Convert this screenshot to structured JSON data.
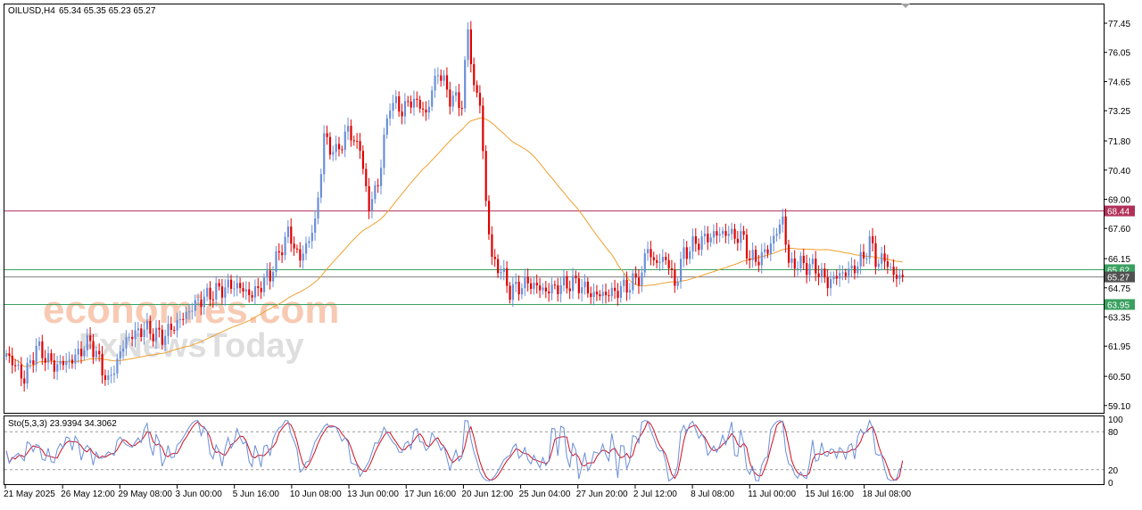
{
  "header": {
    "symbol": "OILUSD,H4",
    "ohlc": "65.34 65.35 65.23 65.27"
  },
  "watermark": {
    "brand1": "economies.com",
    "brand2": "FxNewsToday"
  },
  "colors": {
    "bull": "#6a8fd8",
    "bear": "#e00000",
    "ma": "#f0a030",
    "resistance": "#b0305a",
    "support": "#3aa060",
    "stoch_main": "#6a8fd8",
    "stoch_signal": "#d01020"
  },
  "chart_data": [
    {
      "type": "candlestick",
      "title": "OILUSD,H4",
      "ylim": [
        58.75,
        78.35
      ],
      "y_ticks": [
        "77.45",
        "76.05",
        "74.65",
        "73.25",
        "71.80",
        "70.40",
        "69.00",
        "67.60",
        "66.15",
        "64.75",
        "63.35",
        "61.95",
        "60.50",
        "59.10"
      ],
      "x_ticks": [
        "21 May 2025",
        "26 May 12:00",
        "29 May 08:00",
        "3 Jun 00:00",
        "5 Jun 16:00",
        "10 Jun 08:00",
        "13 Jun 00:00",
        "17 Jun 16:00",
        "20 Jun 12:00",
        "25 Jun 04:00",
        "27 Jun 20:00",
        "2 Jul 12:00",
        "8 Jul 08:00",
        "11 Jul 00:00",
        "15 Jul 16:00",
        "18 Jul 08:00"
      ],
      "levels": [
        {
          "label": "68.44",
          "value": 68.44,
          "role": "resistance"
        },
        {
          "label": "65.62",
          "value": 65.62,
          "role": "support"
        },
        {
          "label": "65.27",
          "value": 65.27,
          "role": "current"
        },
        {
          "label": "63.95",
          "value": 63.95,
          "role": "support"
        }
      ],
      "anchors": [
        {
          "i": 0,
          "c": 61.6
        },
        {
          "i": 6,
          "c": 60.4
        },
        {
          "i": 10,
          "c": 61.9
        },
        {
          "i": 16,
          "c": 61.0
        },
        {
          "i": 22,
          "c": 61.3
        },
        {
          "i": 28,
          "c": 62.2
        },
        {
          "i": 34,
          "c": 60.2
        },
        {
          "i": 40,
          "c": 62.3
        },
        {
          "i": 46,
          "c": 62.8
        },
        {
          "i": 52,
          "c": 62.4
        },
        {
          "i": 58,
          "c": 63.2
        },
        {
          "i": 64,
          "c": 64.1
        },
        {
          "i": 70,
          "c": 64.6
        },
        {
          "i": 76,
          "c": 64.9
        },
        {
          "i": 82,
          "c": 64.4
        },
        {
          "i": 88,
          "c": 65.4
        },
        {
          "i": 94,
          "c": 67.4
        },
        {
          "i": 98,
          "c": 66.1
        },
        {
          "i": 103,
          "c": 67.8
        },
        {
          "i": 106,
          "c": 71.9
        },
        {
          "i": 110,
          "c": 71.2
        },
        {
          "i": 114,
          "c": 72.3
        },
        {
          "i": 118,
          "c": 71.4
        },
        {
          "i": 121,
          "c": 68.6
        },
        {
          "i": 124,
          "c": 69.8
        },
        {
          "i": 128,
          "c": 73.7
        },
        {
          "i": 132,
          "c": 73.3
        },
        {
          "i": 136,
          "c": 73.8
        },
        {
          "i": 140,
          "c": 73.1
        },
        {
          "i": 144,
          "c": 75.2
        },
        {
          "i": 148,
          "c": 73.9
        },
        {
          "i": 152,
          "c": 73.6
        },
        {
          "i": 154,
          "c": 77.1
        },
        {
          "i": 156,
          "c": 74.4
        },
        {
          "i": 158,
          "c": 73.6
        },
        {
          "i": 160,
          "c": 68.9
        },
        {
          "i": 162,
          "c": 66.1
        },
        {
          "i": 165,
          "c": 65.6
        },
        {
          "i": 168,
          "c": 64.6
        },
        {
          "i": 174,
          "c": 65.0
        },
        {
          "i": 180,
          "c": 64.6
        },
        {
          "i": 186,
          "c": 64.9
        },
        {
          "i": 190,
          "c": 65.0
        },
        {
          "i": 196,
          "c": 64.4
        },
        {
          "i": 202,
          "c": 64.5
        },
        {
          "i": 208,
          "c": 64.9
        },
        {
          "i": 212,
          "c": 65.4
        },
        {
          "i": 214,
          "c": 66.8
        },
        {
          "i": 216,
          "c": 65.9
        },
        {
          "i": 220,
          "c": 66.2
        },
        {
          "i": 223,
          "c": 64.9
        },
        {
          "i": 226,
          "c": 66.4
        },
        {
          "i": 230,
          "c": 66.9
        },
        {
          "i": 236,
          "c": 67.3
        },
        {
          "i": 240,
          "c": 67.4
        },
        {
          "i": 244,
          "c": 67.2
        },
        {
          "i": 246,
          "c": 67.1
        },
        {
          "i": 248,
          "c": 66.1
        },
        {
          "i": 252,
          "c": 66.2
        },
        {
          "i": 256,
          "c": 67.1
        },
        {
          "i": 259,
          "c": 68.1
        },
        {
          "i": 261,
          "c": 65.9
        },
        {
          "i": 265,
          "c": 65.9
        },
        {
          "i": 270,
          "c": 65.7
        },
        {
          "i": 274,
          "c": 65.0
        },
        {
          "i": 278,
          "c": 65.4
        },
        {
          "i": 282,
          "c": 65.6
        },
        {
          "i": 286,
          "c": 66.2
        },
        {
          "i": 288,
          "c": 67.0
        },
        {
          "i": 290,
          "c": 66.1
        },
        {
          "i": 294,
          "c": 66.0
        },
        {
          "i": 296,
          "c": 65.3
        },
        {
          "i": 299,
          "c": 65.27
        }
      ],
      "series": [
        {
          "name": "OILUSD,H4",
          "kind": "ohlc",
          "candles": 300
        },
        {
          "kind": "moving-average"
        }
      ]
    },
    {
      "type": "line",
      "title": "Sto(5,3,3) 23.9394 34.3062",
      "ylim": [
        0,
        100
      ],
      "y_ticks": [
        "100",
        "80",
        "20",
        "0"
      ],
      "levels": [
        80,
        20
      ],
      "series": [
        {
          "kind": "main",
          "last": 23.9394
        },
        {
          "kind": "signal",
          "last": 34.3062
        }
      ]
    }
  ]
}
